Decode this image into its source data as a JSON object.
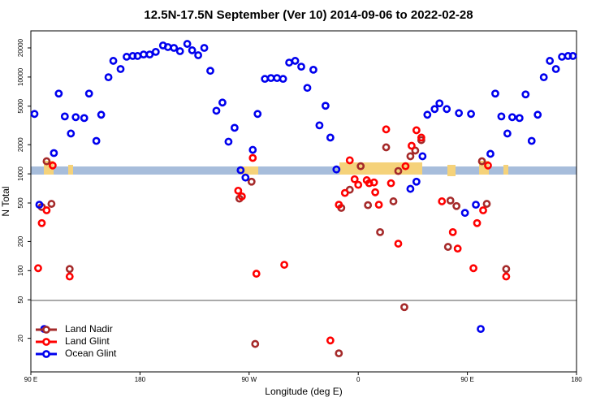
{
  "chart_data": {
    "type": "scatter",
    "title": "12.5N-17.5N September (Ver 10)   2014-09-06 to 2022-02-28",
    "xlabel": "Longitude (deg E)",
    "ylabel": "N Total",
    "xlim": [
      90,
      540
    ],
    "ylim": [
      9,
      30000
    ],
    "log_y": true,
    "xticks": [
      {
        "value": 90,
        "label": "90 E"
      },
      180,
      {
        "value": 270,
        "label": "90 W"
      },
      {
        "value": 360,
        "label": "0"
      },
      {
        "value": 450,
        "label": "90 E"
      },
      {
        "value": 540,
        "label": "180"
      }
    ],
    "yticks": [
      20,
      50,
      100,
      200,
      500,
      1000,
      2000,
      5000,
      10000,
      20000
    ],
    "legend": "lower left",
    "series": [
      {
        "name": "Land Nadir",
        "color": "#a52a2a",
        "x": [
          99,
          103,
          107,
          122,
          262,
          272,
          275,
          344,
          346,
          353,
          362,
          368,
          378,
          383,
          389,
          393,
          398,
          403,
          407,
          412,
          434,
          436,
          441,
          462,
          466,
          482
        ],
        "values": [
          455,
          1350,
          490,
          104,
          555,
          830,
          17.5,
          14,
          445,
          685,
          1200,
          475,
          250,
          1880,
          520,
          1070,
          42,
          1520,
          1740,
          2230,
          176,
          530,
          465,
          1350,
          490,
          104
        ]
      },
      {
        "name": "Land Glint",
        "color": "#ff0000",
        "x": [
          96,
          99,
          103,
          108,
          122,
          261,
          264,
          273,
          276,
          299,
          337,
          344,
          349,
          353,
          357,
          360,
          367,
          369,
          373,
          374,
          377,
          383,
          387,
          393,
          399,
          404,
          408,
          412,
          429,
          438,
          442,
          455,
          458,
          463,
          467,
          482
        ],
        "values": [
          106,
          310,
          420,
          1220,
          87,
          670,
          585,
          1460,
          93,
          115,
          19,
          480,
          635,
          1380,
          880,
          770,
          860,
          800,
          815,
          645,
          480,
          2880,
          800,
          190,
          1200,
          1950,
          2820,
          2370,
          520,
          250,
          169,
          106,
          310,
          420,
          1220,
          87
        ]
      },
      {
        "name": "Ocean Glint",
        "color": "#0000ee",
        "x": [
          93,
          97,
          101,
          109,
          113,
          118,
          123,
          127,
          134,
          138,
          144,
          148,
          154,
          158,
          164,
          169,
          174,
          178,
          183,
          188,
          193,
          199,
          203,
          208,
          213,
          219,
          223,
          228,
          233,
          238,
          243,
          248,
          253,
          258,
          263,
          267,
          273,
          277,
          283,
          288,
          293,
          298,
          303,
          308,
          313,
          318,
          323,
          328,
          333,
          337,
          342,
          403,
          408,
          413,
          417,
          423,
          427,
          433,
          443,
          448,
          453,
          457,
          461,
          469,
          473,
          478,
          483,
          487,
          493,
          498,
          503,
          508,
          513,
          518,
          523,
          528,
          533,
          537
        ],
        "values": [
          4160,
          480,
          25,
          1640,
          6750,
          3920,
          2610,
          3850,
          3770,
          6750,
          2190,
          4080,
          9950,
          14700,
          12100,
          16200,
          16500,
          16500,
          17100,
          17100,
          18200,
          21200,
          20400,
          20000,
          18500,
          22000,
          18900,
          16800,
          20000,
          11600,
          4490,
          5450,
          2150,
          2990,
          1090,
          915,
          1770,
          4160,
          9570,
          9760,
          9760,
          9570,
          14100,
          14700,
          12800,
          7730,
          11900,
          3170,
          5050,
          2370,
          1110,
          700,
          830,
          1520,
          4080,
          4670,
          5350,
          4670,
          4240,
          395,
          4160,
          480,
          25,
          1610,
          6750,
          3920,
          2610,
          3850,
          3770,
          6620,
          2190,
          4080,
          9950,
          14700,
          12100,
          16200,
          16500,
          16500
        ]
      }
    ]
  }
}
